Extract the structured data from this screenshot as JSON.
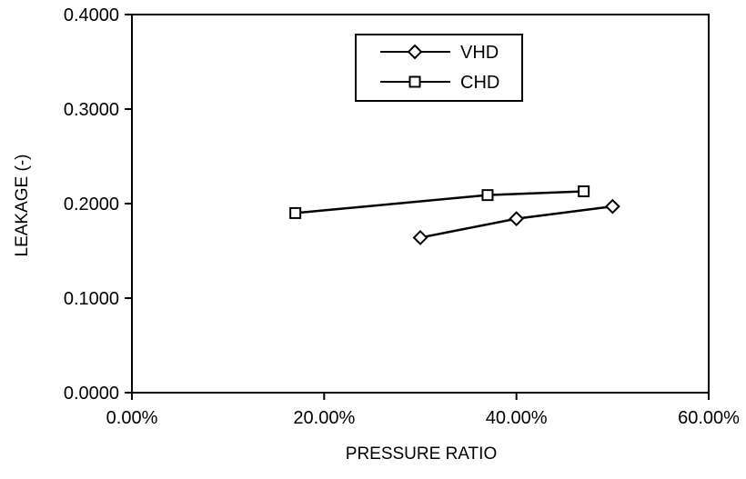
{
  "chart_data": {
    "type": "line",
    "title": "",
    "xlabel": "PRESSURE RATIO",
    "ylabel": "LEAKAGE (-)",
    "xlim": [
      0,
      0.6
    ],
    "ylim": [
      0,
      0.4
    ],
    "xticks": [
      0,
      0.2,
      0.4,
      0.6
    ],
    "xtick_labels": [
      "0.00%",
      "20.00%",
      "40.00%",
      "60.00%"
    ],
    "yticks": [
      0,
      0.1,
      0.2,
      0.3,
      0.4
    ],
    "ytick_labels": [
      "0.0000",
      "0.1000",
      "0.2000",
      "0.3000",
      "0.4000"
    ],
    "grid": false,
    "legend_position": "top-center",
    "series": [
      {
        "name": "VHD",
        "marker": "diamond",
        "color": "#000000",
        "x": [
          0.3,
          0.4,
          0.5
        ],
        "y": [
          0.164,
          0.184,
          0.197
        ]
      },
      {
        "name": "CHD",
        "marker": "square",
        "color": "#000000",
        "x": [
          0.17,
          0.37,
          0.47
        ],
        "y": [
          0.19,
          0.209,
          0.213
        ]
      }
    ]
  }
}
